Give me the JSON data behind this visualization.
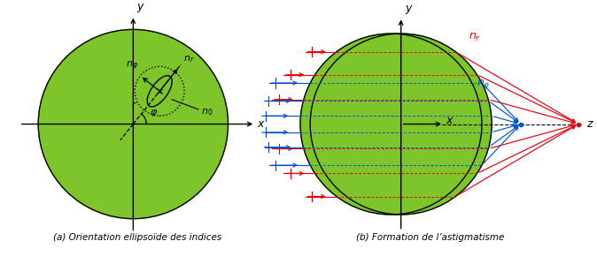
{
  "green_color": "#7dc52b",
  "red_color": "#e8000d",
  "blue_color": "#0055cc",
  "caption_a": "(a) Orientation ellipsoïde des indices",
  "caption_b": "(b) Formation de l’astigmatisme"
}
